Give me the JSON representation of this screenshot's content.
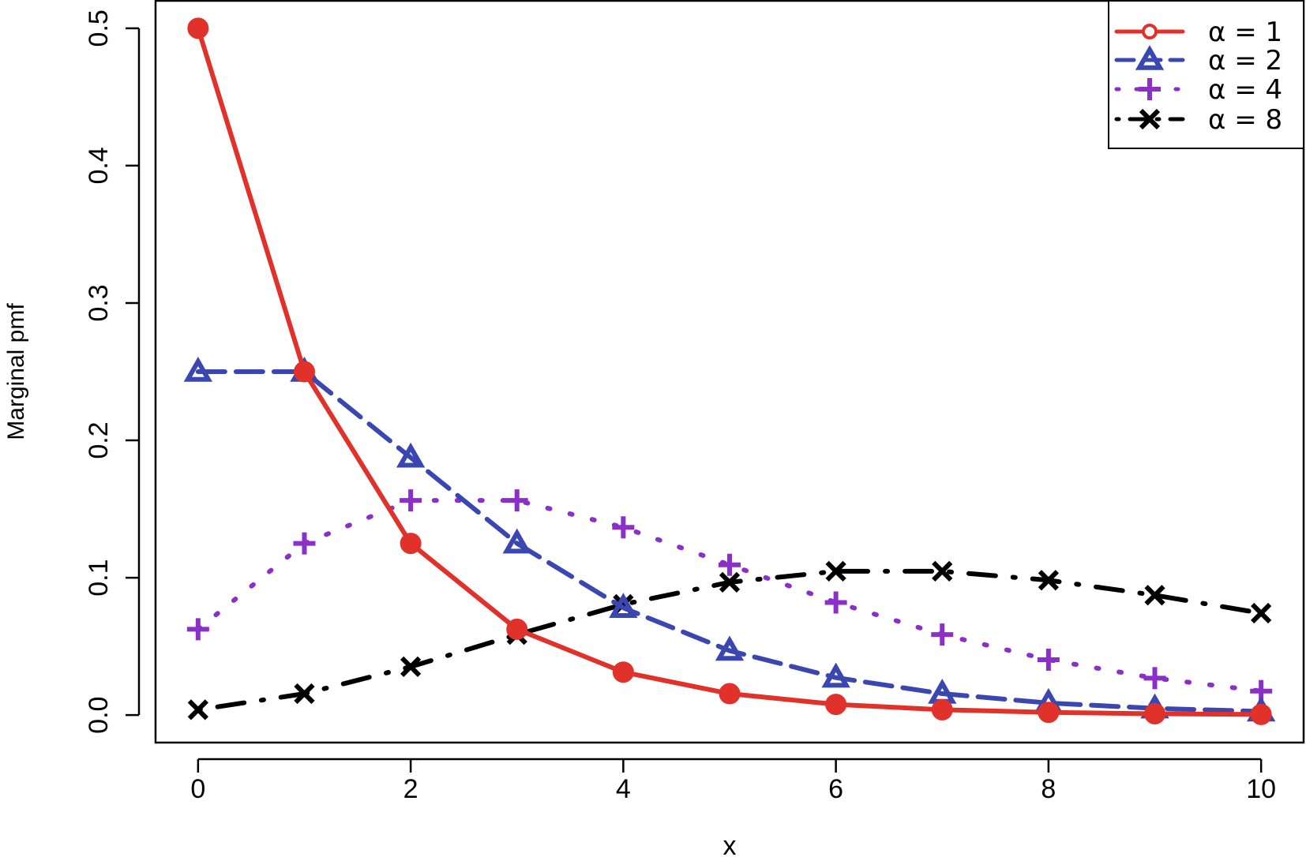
{
  "chart_data": {
    "type": "line",
    "xlabel": "x",
    "ylabel": "Marginal pmf",
    "xlim": [
      -0.4,
      10.4
    ],
    "ylim": [
      -0.02,
      0.52
    ],
    "xticks": [
      0,
      2,
      4,
      6,
      8,
      10
    ],
    "xtick_labels": [
      "0",
      "2",
      "4",
      "6",
      "8",
      "10"
    ],
    "yticks": [
      0.0,
      0.1,
      0.2,
      0.3,
      0.4,
      0.5
    ],
    "ytick_labels": [
      "0.0",
      "0.1",
      "0.2",
      "0.3",
      "0.4",
      "0.5"
    ],
    "grid": false,
    "legend_position": "top-right",
    "x": [
      0,
      1,
      2,
      3,
      4,
      5,
      6,
      7,
      8,
      9,
      10
    ],
    "series": [
      {
        "name": "α = 1",
        "color": "#e0312b",
        "line": "solid",
        "marker": "circle",
        "values": [
          0.5,
          0.25,
          0.125,
          0.0625,
          0.0313,
          0.0156,
          0.0078,
          0.0039,
          0.002,
          0.001,
          0.0005
        ]
      },
      {
        "name": "α = 2",
        "color": "#3b47b0",
        "line": "dashed",
        "marker": "triangle",
        "values": [
          0.25,
          0.25,
          0.1875,
          0.125,
          0.0781,
          0.0469,
          0.0273,
          0.0156,
          0.0088,
          0.0049,
          0.0027
        ]
      },
      {
        "name": "α = 4",
        "color": "#8b2fc9",
        "line": "dotted",
        "marker": "plus",
        "values": [
          0.0625,
          0.125,
          0.1563,
          0.1563,
          0.1367,
          0.1094,
          0.082,
          0.0586,
          0.0403,
          0.0269,
          0.0175
        ]
      },
      {
        "name": "α = 8",
        "color": "#000000",
        "line": "dotdash",
        "marker": "cross",
        "values": [
          0.0039,
          0.0156,
          0.0352,
          0.0586,
          0.0806,
          0.0967,
          0.1047,
          0.1047,
          0.0982,
          0.0873,
          0.0742
        ]
      }
    ]
  }
}
